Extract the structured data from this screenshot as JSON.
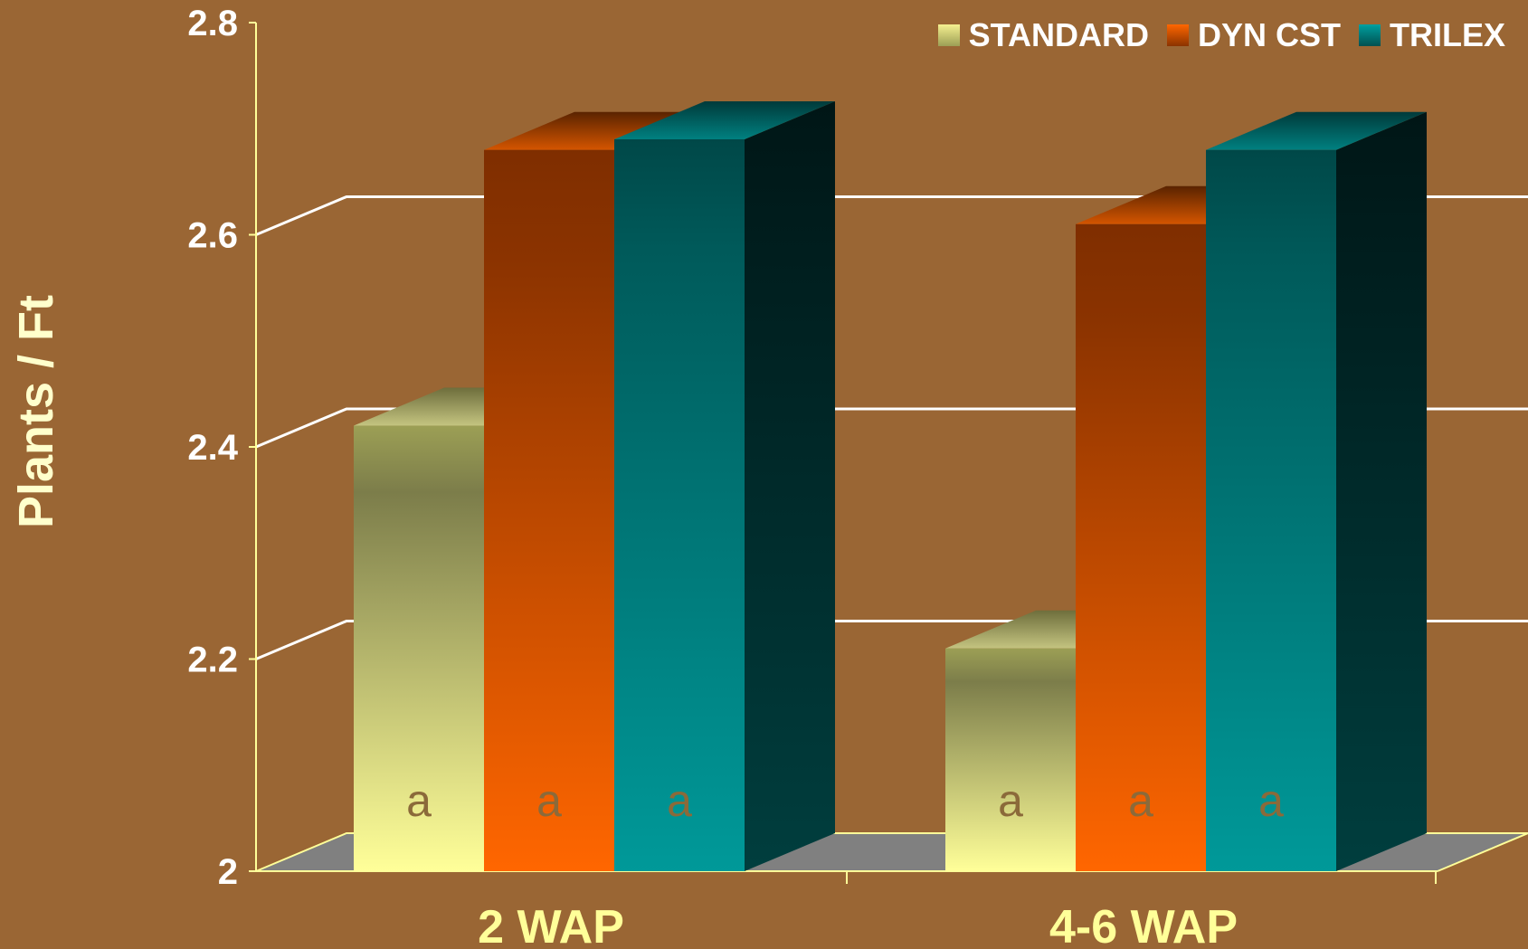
{
  "chart_data": {
    "type": "bar",
    "title": "",
    "xlabel": "",
    "ylabel": "Plants / Ft",
    "categories": [
      "2 WAP",
      "4-6 WAP"
    ],
    "series": [
      {
        "name": "STANDARD",
        "values": [
          2.42,
          2.21
        ],
        "letters": [
          "a",
          "a"
        ],
        "color": "#FFFF99"
      },
      {
        "name": "DYN CST",
        "values": [
          2.68,
          2.61
        ],
        "letters": [
          "a",
          "a"
        ],
        "color": "#FF6600"
      },
      {
        "name": "TRILEX",
        "values": [
          2.69,
          2.68
        ],
        "letters": [
          "a",
          "a"
        ],
        "color": "#009999"
      }
    ],
    "ylim": [
      2,
      2.8
    ],
    "yticks": [
      "2",
      "2.2",
      "2.4",
      "2.6",
      "2.8"
    ],
    "grid": true,
    "legend_position": "top-right"
  },
  "colors": {
    "background": "#9A6634",
    "axis": "#FFFF99",
    "grid": "#FFFFFF",
    "floor": "#808080",
    "category_label": "#FFFF99",
    "letter": "#8B6A3A"
  }
}
